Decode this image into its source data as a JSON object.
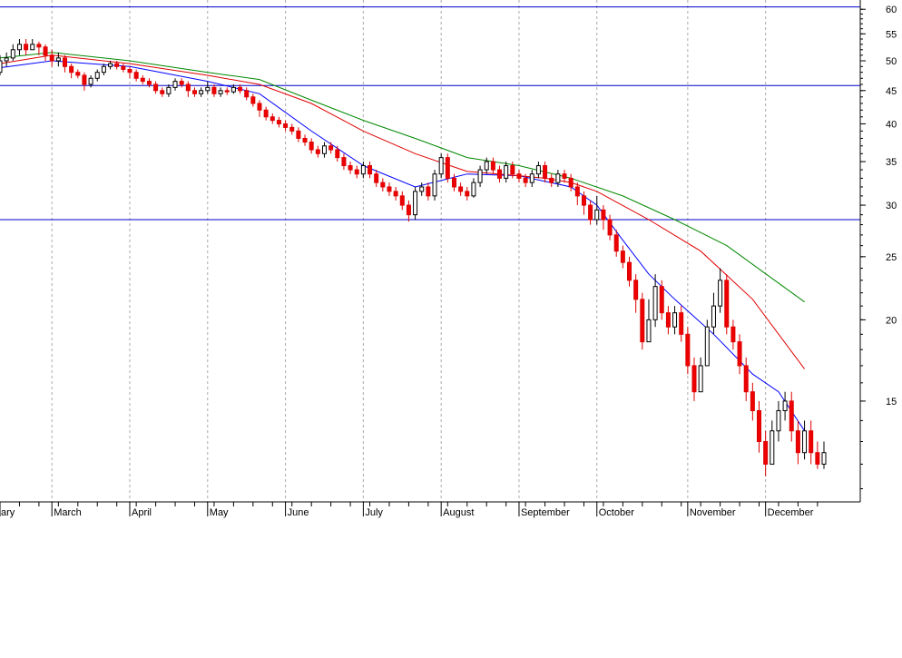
{
  "chart_data": {
    "type": "candlestick",
    "title": "",
    "xlabel": "",
    "ylabel": "",
    "y_scale": "log",
    "ylim": [
      10.5,
      62
    ],
    "y_ticks": [
      15,
      20,
      25,
      30,
      35,
      40,
      45,
      50,
      55,
      60
    ],
    "grid": {
      "vertical": true,
      "horizontal": false,
      "style": "dotted"
    },
    "x_ticks": [
      {
        "label": "ary",
        "day": 0
      },
      {
        "label": "March",
        "day": 4
      },
      {
        "label": "April",
        "day": 10
      },
      {
        "label": "May",
        "day": 16
      },
      {
        "label": "June",
        "day": 22
      },
      {
        "label": "July",
        "day": 28
      },
      {
        "label": "August",
        "day": 34
      },
      {
        "label": "September",
        "day": 40
      },
      {
        "label": "October",
        "day": 46
      },
      {
        "label": "November",
        "day": 53
      },
      {
        "label": "December",
        "day": 59
      }
    ],
    "reference_lines": [
      {
        "value": 60.5,
        "color": "#0000cc"
      },
      {
        "value": 45.8,
        "color": "#0000cc"
      },
      {
        "value": 28.5,
        "color": "#0000cc"
      }
    ],
    "series": [
      {
        "role": "moving_average_short",
        "color": "#0000ff",
        "values": [
          [
            0,
            48.8
          ],
          [
            4,
            50.0
          ],
          [
            10,
            49.0
          ],
          [
            16,
            46.5
          ],
          [
            20,
            44.5
          ],
          [
            24,
            39.0
          ],
          [
            28,
            34.5
          ],
          [
            32,
            32.0
          ],
          [
            36,
            33.5
          ],
          [
            40,
            33.3
          ],
          [
            44,
            32.0
          ],
          [
            46,
            30.0
          ],
          [
            48,
            26.5
          ],
          [
            50,
            23.5
          ],
          [
            52,
            21.5
          ],
          [
            55,
            19.0
          ],
          [
            58,
            16.5
          ],
          [
            60,
            15.5
          ],
          [
            62,
            13.5
          ]
        ]
      },
      {
        "role": "moving_average_medium",
        "color": "#e00000",
        "values": [
          [
            0,
            49.5
          ],
          [
            4,
            51.0
          ],
          [
            10,
            49.5
          ],
          [
            16,
            47.5
          ],
          [
            20,
            46.0
          ],
          [
            24,
            43.0
          ],
          [
            28,
            39.0
          ],
          [
            32,
            36.0
          ],
          [
            36,
            33.8
          ],
          [
            40,
            33.3
          ],
          [
            42,
            33.0
          ],
          [
            44,
            32.5
          ],
          [
            46,
            31.5
          ],
          [
            50,
            28.5
          ],
          [
            54,
            25.5
          ],
          [
            58,
            21.5
          ],
          [
            62,
            16.8
          ]
        ]
      },
      {
        "role": "moving_average_long",
        "color": "#008800",
        "values": [
          [
            0,
            50.5
          ],
          [
            4,
            51.5
          ],
          [
            10,
            50.0
          ],
          [
            16,
            48.0
          ],
          [
            20,
            46.8
          ],
          [
            24,
            43.5
          ],
          [
            28,
            40.5
          ],
          [
            32,
            38.0
          ],
          [
            36,
            35.5
          ],
          [
            40,
            34.5
          ],
          [
            44,
            33.0
          ],
          [
            48,
            31.0
          ],
          [
            52,
            28.5
          ],
          [
            56,
            26.0
          ],
          [
            62,
            21.3
          ]
        ]
      }
    ],
    "candles": [
      [
        0,
        48,
        50,
        51,
        47.5
      ],
      [
        0.5,
        50,
        50.5,
        51.5,
        49
      ],
      [
        1,
        50.5,
        52,
        53,
        50
      ],
      [
        1.5,
        52,
        53,
        54,
        51
      ],
      [
        2,
        53,
        52,
        54,
        51
      ],
      [
        2.5,
        52,
        53,
        54,
        52
      ],
      [
        3,
        53,
        52.5,
        53.5,
        51
      ],
      [
        3.5,
        52.5,
        51,
        53,
        50
      ],
      [
        4,
        51,
        50,
        52,
        49
      ],
      [
        4.5,
        50,
        50.5,
        51.5,
        49
      ],
      [
        5,
        50.5,
        49,
        51,
        48
      ],
      [
        5.5,
        49,
        48,
        49.5,
        47
      ],
      [
        6,
        48,
        47.5,
        48.5,
        47
      ],
      [
        6.5,
        47.5,
        46,
        48,
        45
      ],
      [
        7,
        46,
        47,
        47.5,
        45.5
      ],
      [
        7.5,
        47,
        48,
        48.5,
        46.5
      ],
      [
        8,
        48,
        49,
        49.5,
        47.5
      ],
      [
        8.5,
        49,
        49.5,
        50,
        48.5
      ],
      [
        9,
        49.5,
        49,
        50,
        48.5
      ],
      [
        9.5,
        49,
        48.5,
        49.5,
        48
      ],
      [
        10,
        48.5,
        48,
        49,
        47
      ],
      [
        10.5,
        48,
        47,
        48.5,
        46.5
      ],
      [
        11,
        47,
        46.5,
        47.5,
        46
      ],
      [
        11.5,
        46.5,
        46,
        47,
        45.5
      ],
      [
        12,
        46,
        45,
        46.5,
        44.5
      ],
      [
        12.5,
        45,
        44.5,
        45.5,
        44
      ],
      [
        13,
        44.5,
        45.5,
        46,
        44
      ],
      [
        13.5,
        45.5,
        46.5,
        47,
        45
      ],
      [
        14,
        46.5,
        46,
        47,
        45.5
      ],
      [
        14.5,
        46,
        45,
        46.5,
        44
      ],
      [
        15,
        45,
        44.5,
        45.5,
        44
      ],
      [
        15.5,
        44.5,
        45,
        45.5,
        44
      ],
      [
        16,
        45,
        45.5,
        46.5,
        44.5
      ],
      [
        16.5,
        45.5,
        44.5,
        46,
        44
      ],
      [
        17,
        44.5,
        45,
        45.5,
        44
      ],
      [
        17.5,
        45,
        44.8,
        45.5,
        44.3
      ],
      [
        18,
        44.8,
        45.5,
        46,
        44.5
      ],
      [
        18.5,
        45.5,
        45,
        46,
        44.5
      ],
      [
        19,
        45,
        44,
        45.5,
        43.5
      ],
      [
        19.5,
        44,
        43,
        44.5,
        42.5
      ],
      [
        20,
        43,
        42,
        43.5,
        41
      ],
      [
        20.5,
        42,
        41,
        42.5,
        40.5
      ],
      [
        21,
        41,
        40.5,
        41.5,
        40
      ],
      [
        21.5,
        40.5,
        40,
        41,
        39.5
      ],
      [
        22,
        40,
        39.5,
        40.5,
        39
      ],
      [
        22.5,
        39.5,
        39,
        40,
        38.5
      ],
      [
        23,
        39,
        38,
        39.5,
        37.5
      ],
      [
        23.5,
        38,
        37.5,
        38.5,
        37
      ],
      [
        24,
        37.5,
        36.5,
        38,
        36
      ],
      [
        24.5,
        36.5,
        36,
        37,
        35.5
      ],
      [
        25,
        36,
        37,
        37.5,
        35.5
      ],
      [
        25.5,
        37,
        36.5,
        37.5,
        36
      ],
      [
        26,
        36.5,
        35.5,
        37,
        35
      ],
      [
        26.5,
        35.5,
        34.5,
        36,
        34
      ],
      [
        27,
        34.5,
        34,
        35,
        33.5
      ],
      [
        27.5,
        34,
        33.5,
        34.5,
        33
      ],
      [
        28,
        33.5,
        34.5,
        35,
        33
      ],
      [
        28.5,
        34.5,
        33.5,
        35,
        33
      ],
      [
        29,
        33.5,
        32.5,
        34,
        32
      ],
      [
        29.5,
        32.5,
        32,
        33,
        31.5
      ],
      [
        30,
        32,
        31.5,
        32.5,
        31
      ],
      [
        30.5,
        31.5,
        31,
        32,
        30.5
      ],
      [
        31,
        31,
        30,
        31.5,
        29.5
      ],
      [
        31.5,
        30,
        29,
        30.5,
        28.3
      ],
      [
        32,
        29,
        31.5,
        32,
        28.5
      ],
      [
        32.5,
        31.5,
        32,
        32.5,
        31
      ],
      [
        33,
        32,
        31,
        32.5,
        30.5
      ],
      [
        33.5,
        31,
        33.5,
        34,
        30.5
      ],
      [
        34,
        33.5,
        35.5,
        36,
        33
      ],
      [
        34.5,
        35.5,
        33,
        36,
        32.5
      ],
      [
        35,
        33,
        32,
        33.5,
        31.5
      ],
      [
        35.5,
        32,
        31.5,
        32.5,
        31
      ],
      [
        36,
        31.5,
        31,
        32,
        30.5
      ],
      [
        36.5,
        31,
        32.5,
        33,
        30.8
      ],
      [
        37,
        32.5,
        34,
        34.5,
        32
      ],
      [
        37.5,
        34,
        35,
        35.5,
        33.5
      ],
      [
        38,
        35,
        34,
        35.5,
        33.5
      ],
      [
        38.5,
        34,
        33,
        34.5,
        32.5
      ],
      [
        39,
        33,
        34.5,
        35,
        32.5
      ],
      [
        39.5,
        34.5,
        33.5,
        35,
        33
      ],
      [
        40,
        33.5,
        33,
        34,
        32.5
      ],
      [
        40.5,
        33,
        32.5,
        33.5,
        32
      ],
      [
        41,
        32.5,
        33.5,
        34,
        32
      ],
      [
        41.5,
        33.5,
        34.5,
        35,
        33
      ],
      [
        42,
        34.5,
        33,
        35,
        32.5
      ],
      [
        42.5,
        33,
        32.5,
        33.5,
        32
      ],
      [
        43,
        32.5,
        33.5,
        34,
        32
      ],
      [
        43.5,
        33.5,
        33,
        34,
        32.5
      ],
      [
        44,
        33,
        32,
        33.5,
        31.5
      ],
      [
        44.5,
        32,
        31,
        32.5,
        30
      ],
      [
        45,
        31,
        30,
        31.5,
        29
      ],
      [
        45.5,
        30,
        28.5,
        30.5,
        28
      ],
      [
        46,
        28.5,
        29.5,
        31,
        28
      ],
      [
        46.5,
        29.5,
        28.5,
        30,
        27.5
      ],
      [
        47,
        28.5,
        27,
        29,
        26.5
      ],
      [
        47.5,
        27,
        25.5,
        27.5,
        25
      ],
      [
        48,
        25.5,
        24.5,
        26,
        24
      ],
      [
        48.5,
        24.5,
        23,
        25,
        22.5
      ],
      [
        49,
        23,
        21.5,
        23.5,
        20.5
      ],
      [
        49.5,
        21.5,
        18.5,
        22,
        18
      ],
      [
        50,
        18.5,
        20,
        21.5,
        18.5
      ],
      [
        50.5,
        20,
        22.5,
        23.5,
        19.5
      ],
      [
        51,
        22.5,
        20.5,
        23,
        20
      ],
      [
        51.5,
        20.5,
        19.5,
        21,
        19
      ],
      [
        52,
        19.5,
        20.5,
        21,
        19
      ],
      [
        52.5,
        20.5,
        19,
        21,
        18.5
      ],
      [
        53,
        19,
        17,
        19.5,
        16.5
      ],
      [
        53.5,
        17,
        15.5,
        17.5,
        15
      ],
      [
        54,
        15.5,
        17,
        17.5,
        15.5
      ],
      [
        54.5,
        17,
        19.5,
        20,
        17
      ],
      [
        55,
        19.5,
        21,
        22,
        19
      ],
      [
        55.5,
        21,
        23,
        24,
        20.5
      ],
      [
        56,
        23,
        19.5,
        23.5,
        19
      ],
      [
        56.5,
        19.5,
        18.5,
        20,
        18
      ],
      [
        57,
        18.5,
        17,
        19,
        16.5
      ],
      [
        57.5,
        17,
        15.5,
        17.5,
        15
      ],
      [
        58,
        15.5,
        14.5,
        16,
        14
      ],
      [
        58.5,
        14.5,
        13,
        15,
        12.5
      ],
      [
        59,
        13,
        12,
        13.5,
        11.5
      ],
      [
        59.5,
        12,
        13.5,
        14,
        12
      ],
      [
        60,
        13.5,
        14.5,
        15,
        13
      ],
      [
        60.5,
        14.5,
        15,
        15.5,
        14
      ],
      [
        61,
        15,
        13.5,
        15.5,
        13
      ],
      [
        61.5,
        13.5,
        12.5,
        14,
        12
      ],
      [
        62,
        12.5,
        13.5,
        14,
        12.2
      ],
      [
        62.5,
        13.5,
        12.5,
        14,
        12
      ],
      [
        63,
        12.5,
        12,
        13,
        11.8
      ],
      [
        63.5,
        12,
        12.5,
        13,
        11.8
      ]
    ]
  }
}
